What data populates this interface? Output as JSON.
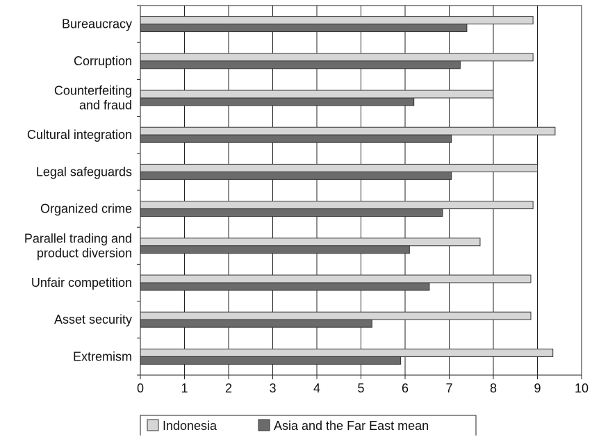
{
  "chart_data": {
    "type": "bar",
    "orientation": "horizontal",
    "title": "",
    "xlabel": "",
    "ylabel": "",
    "xlim": [
      0,
      10
    ],
    "x_ticks": [
      0,
      1,
      2,
      3,
      4,
      5,
      6,
      7,
      8,
      9,
      10
    ],
    "x_tick_labels": [
      "0",
      "1",
      "2",
      "3",
      "4",
      "5",
      "6",
      "7",
      "8",
      "9",
      "10"
    ],
    "grid": "vertical",
    "legend_position": "bottom",
    "categories": [
      [
        "Bureaucracy"
      ],
      [
        "Corruption"
      ],
      [
        "Counterfeiting",
        "and fraud"
      ],
      [
        "Cultural integration"
      ],
      [
        "Legal safeguards"
      ],
      [
        "Organized crime"
      ],
      [
        "Parallel trading and",
        "product diversion"
      ],
      [
        "Unfair competition"
      ],
      [
        "Asset security"
      ],
      [
        "Extremism"
      ]
    ],
    "series": [
      {
        "name": "Indonesia",
        "color": "#d6d6d6",
        "values": [
          8.9,
          8.9,
          8.0,
          9.4,
          9.0,
          8.9,
          7.7,
          8.85,
          8.85,
          9.35
        ]
      },
      {
        "name": "Asia and the Far East mean",
        "color": "#6b6b6b",
        "values": [
          7.4,
          7.25,
          6.2,
          7.05,
          7.05,
          6.85,
          6.1,
          6.55,
          5.25,
          5.9
        ]
      }
    ]
  }
}
